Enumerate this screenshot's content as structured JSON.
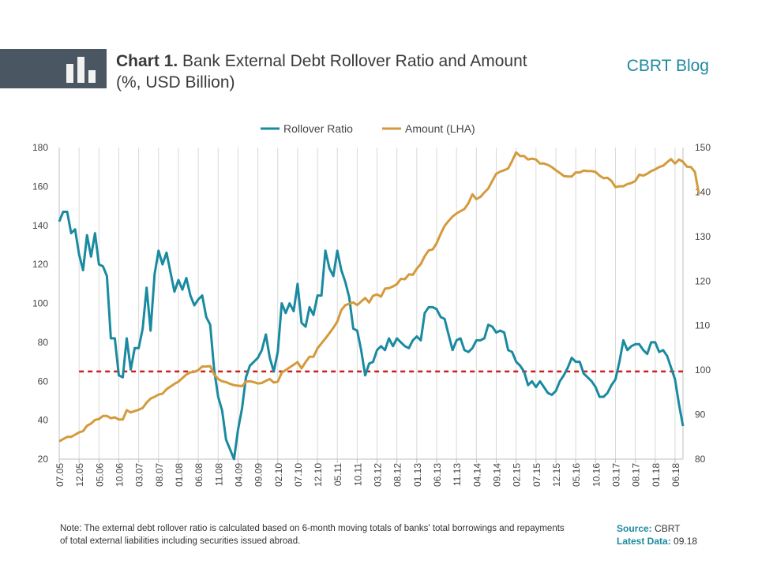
{
  "header": {
    "title_bold": "Chart 1.",
    "title_rest": "Bank External Debt Rollover Ratio and Amount",
    "subtitle": "(%, USD Billion)",
    "blog": "CBRT Blog",
    "icon": "bar-chart-icon"
  },
  "footer": {
    "note": "Note: The external debt rollover ratio is calculated based on 6-month moving totals of banks' total borrowings and repayments of total external liabilities including securities issued abroad.",
    "source_label": "Source:",
    "source_value": "CBRT",
    "latest_label": "Latest Data:",
    "latest_value": "09.18"
  },
  "colors": {
    "rollover": "#1a8aa0",
    "amount": "#d49a3c",
    "reference": "#cc1f1f"
  },
  "chart_data": {
    "type": "line",
    "legend": [
      "Rollover Ratio",
      "Amount (LHA)"
    ],
    "legend_position": "top",
    "x_tick_labels": [
      "07.05",
      "12.05",
      "05.06",
      "10.06",
      "03.07",
      "08.07",
      "01.08",
      "06.08",
      "11.08",
      "04.09",
      "09.09",
      "02.10",
      "07.10",
      "12.10",
      "05.11",
      "10.11",
      "03.12",
      "08.12",
      "01.13",
      "06.13",
      "11.13",
      "04.14",
      "09.14",
      "02.15",
      "07.15",
      "12.15",
      "05.16",
      "10.16",
      "03.17",
      "08.17",
      "01.18",
      "06.18"
    ],
    "y_left": {
      "min": 20,
      "max": 180,
      "ticks": [
        20,
        40,
        60,
        80,
        100,
        120,
        140,
        160,
        180
      ]
    },
    "y_right": {
      "min": 80,
      "max": 150,
      "ticks": [
        80,
        90,
        100,
        110,
        120,
        130,
        140,
        150
      ]
    },
    "reference_line": {
      "axis": "left",
      "value": 65,
      "x_start": "12.05",
      "x_end": "09.18"
    },
    "series": [
      {
        "name": "Rollover Ratio",
        "axis": "left",
        "values": [
          142,
          147,
          147,
          136,
          138,
          125,
          117,
          135,
          124,
          136,
          120,
          119,
          114,
          82,
          82,
          63,
          62,
          82,
          66,
          77,
          77,
          87,
          108,
          86,
          115,
          127,
          120,
          126,
          116,
          106,
          112,
          107,
          113,
          104,
          99,
          102,
          104,
          93,
          89,
          66,
          52,
          45,
          30,
          25,
          20,
          35,
          46,
          62,
          68,
          70,
          72,
          76,
          84,
          72,
          65,
          75,
          100,
          95,
          100,
          96,
          110,
          90,
          88,
          98,
          94,
          104,
          104,
          127,
          118,
          114,
          127,
          117,
          111,
          103,
          87,
          86,
          76,
          63,
          69,
          70,
          76,
          78,
          76,
          82,
          78,
          82,
          80,
          78,
          77,
          81,
          83,
          81,
          95,
          98,
          98,
          97,
          93,
          92,
          84,
          76,
          81,
          82,
          76,
          75,
          77,
          81,
          81,
          82,
          89,
          88,
          85,
          86,
          85,
          76,
          75,
          70,
          68,
          65,
          58,
          60,
          57,
          60,
          57,
          54,
          53,
          55,
          60,
          63,
          67,
          72,
          70,
          70,
          64,
          62,
          60,
          57,
          52,
          52,
          54,
          58,
          61,
          70,
          81,
          76,
          78,
          79,
          79,
          76,
          74,
          80,
          80,
          75,
          76,
          73,
          67,
          61,
          48,
          37
        ]
      },
      {
        "name": "Amount (LHA)",
        "axis": "right",
        "values": [
          84,
          84.5,
          85,
          85,
          85.5,
          86,
          86.3,
          87.5,
          88,
          88.8,
          89,
          89.7,
          89.7,
          89.2,
          89.4,
          88.9,
          88.9,
          91,
          90.5,
          90.8,
          91.1,
          91.5,
          92.7,
          93.6,
          94,
          94.5,
          94.7,
          95.7,
          96.3,
          96.9,
          97.4,
          98.2,
          99,
          99.5,
          99.6,
          100,
          100.8,
          100.8,
          100.9,
          99,
          98,
          97.5,
          97.3,
          96.9,
          96.6,
          96.5,
          96.4,
          97.4,
          97.5,
          97.3,
          97,
          97.1,
          97.6,
          98,
          97.2,
          97.4,
          99.4,
          100,
          100.6,
          101.2,
          101.8,
          100.4,
          101.8,
          103,
          103,
          104.9,
          106,
          107.1,
          108.3,
          109.5,
          110.9,
          113.5,
          114.6,
          114.9,
          115.2,
          114.6,
          115.4,
          116.2,
          115.2,
          116.7,
          117,
          116.5,
          118.3,
          118.4,
          118.8,
          119.3,
          120.5,
          120.4,
          121.5,
          121.4,
          122.8,
          123.8,
          125.6,
          126.9,
          127.1,
          128.5,
          130.6,
          132.4,
          133.5,
          134.5,
          135.2,
          135.7,
          136.2,
          137.5,
          139.5,
          138.4,
          138.9,
          139.9,
          140.8,
          142.5,
          144.1,
          144.6,
          144.9,
          145.3,
          147,
          148.9,
          148.1,
          148.1,
          147.3,
          147.5,
          147.3,
          146.4,
          146.4,
          146.1,
          145.6,
          144.9,
          144.3,
          143.6,
          143.5,
          143.5,
          144.4,
          144.4,
          144.8,
          144.7,
          144.7,
          144.5,
          143.7,
          143.1,
          143.2,
          142.5,
          141.1,
          141.3,
          141.3,
          141.8,
          142,
          142.5,
          143.9,
          143.7,
          144.1,
          144.7,
          145.1,
          145.6,
          145.9,
          146.7,
          147.4,
          146.4,
          147.3,
          146.8,
          145.7,
          145.6,
          144.5,
          139.6
        ]
      }
    ]
  }
}
